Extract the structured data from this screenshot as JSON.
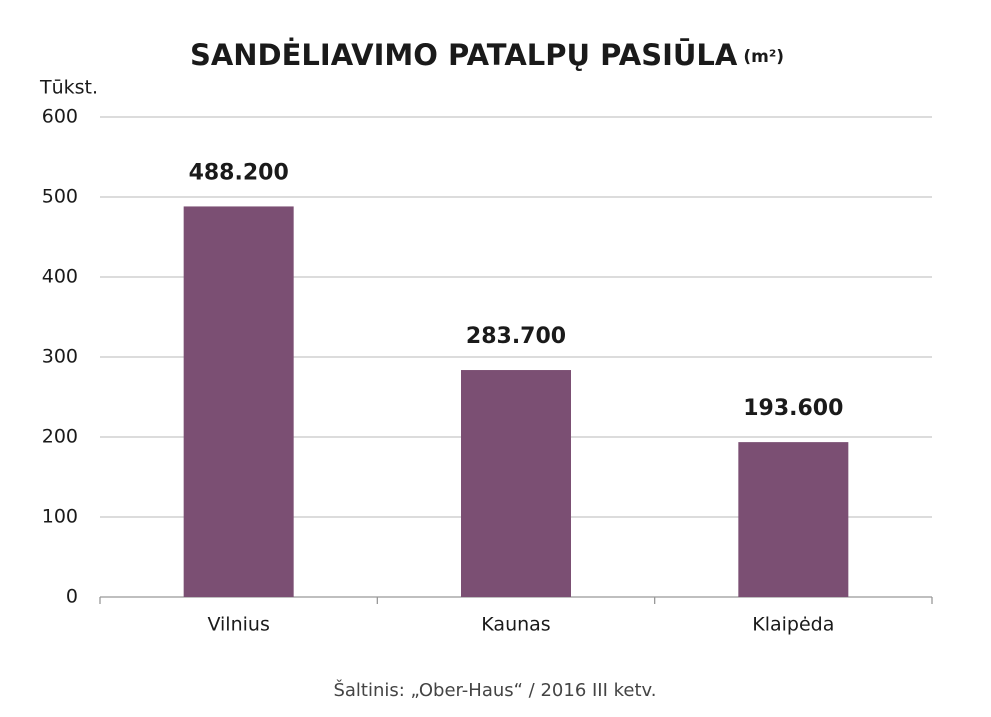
{
  "chart_data": {
    "type": "bar",
    "title": "SANDĖLIAVIMO PATALPŲ PASIŪLA",
    "title_unit": "(m²)",
    "y_label": "Tūkst.",
    "source": "Šaltinis: „Ober-Haus“  / 2016 III ketv.",
    "categories": [
      "Vilnius",
      "Kaunas",
      "Klaipėda"
    ],
    "values": [
      488.2,
      283.7,
      193.6
    ],
    "value_labels": [
      "488.200",
      "283.700",
      "193.600"
    ],
    "color": "#7b4f73",
    "ylim": [
      0,
      600
    ],
    "yticks": [
      0,
      100,
      200,
      300,
      400,
      500,
      600
    ],
    "grid": true
  }
}
